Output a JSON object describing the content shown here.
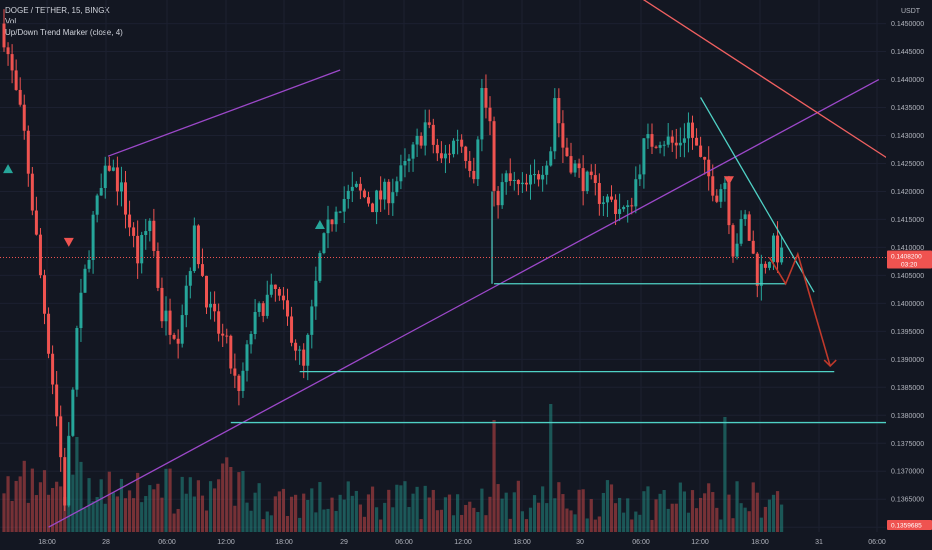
{
  "legend": {
    "symbol": "DOGE / TETHER, 15, BINGX",
    "volume_label": "Vol",
    "indicator": "Up/Down Trend Marker (close, 4)"
  },
  "currency": "USDT",
  "colors": {
    "background": "#131722",
    "up": "#26a69a",
    "down": "#ef5350",
    "channel": "#9c48c9",
    "trend": "#4fd1c5",
    "resistance": "#f06060",
    "projection": "#c0392b"
  },
  "chart_data": {
    "type": "candlestick",
    "x_tick_labels": [
      "18:00",
      "28",
      "06:00",
      "12:00",
      "18:00",
      "29",
      "06:00",
      "12:00",
      "18:00",
      "30",
      "06:00",
      "12:00",
      "18:00",
      "31",
      "06:00"
    ],
    "y_tick_labels": [
      "0.1360000",
      "0.1365000",
      "0.1370000",
      "0.1375000",
      "0.1380000",
      "0.1385000",
      "0.1390000",
      "0.1395000",
      "0.1400000",
      "0.1405000",
      "0.1410000",
      "0.1415000",
      "0.1420000",
      "0.1425000",
      "0.1430000",
      "0.1435000",
      "0.1440000",
      "0.1445000",
      "0.1450000",
      "0.1455000"
    ],
    "ylim": [
      0.13595,
      0.1456
    ],
    "last_price": {
      "value": 0.14082,
      "label": "0.1408200",
      "countdown": "03:20"
    },
    "volume_tag": "0.1359685",
    "key_price_levels": [
      0.138,
      0.13878,
      0.14035
    ],
    "anchors": [
      {
        "t": 0,
        "p": 0.1448
      },
      {
        "t": 5,
        "p": 0.143
      },
      {
        "t": 9,
        "p": 0.1405
      },
      {
        "t": 13,
        "p": 0.138
      },
      {
        "t": 15,
        "p": 0.1365
      },
      {
        "t": 18,
        "p": 0.1395
      },
      {
        "t": 22,
        "p": 0.1415
      },
      {
        "t": 26,
        "p": 0.1425
      },
      {
        "t": 29,
        "p": 0.142
      },
      {
        "t": 33,
        "p": 0.1408
      },
      {
        "t": 36,
        "p": 0.1415
      },
      {
        "t": 39,
        "p": 0.1398
      },
      {
        "t": 43,
        "p": 0.1395
      },
      {
        "t": 47,
        "p": 0.1412
      },
      {
        "t": 51,
        "p": 0.1398
      },
      {
        "t": 55,
        "p": 0.1392
      },
      {
        "t": 58,
        "p": 0.1383
      },
      {
        "t": 61,
        "p": 0.1395
      },
      {
        "t": 64,
        "p": 0.14
      },
      {
        "t": 67,
        "p": 0.1402
      },
      {
        "t": 71,
        "p": 0.1395
      },
      {
        "t": 74,
        "p": 0.1388
      },
      {
        "t": 78,
        "p": 0.1408
      },
      {
        "t": 82,
        "p": 0.1418
      },
      {
        "t": 87,
        "p": 0.142
      },
      {
        "t": 91,
        "p": 0.1418
      },
      {
        "t": 95,
        "p": 0.142
      },
      {
        "t": 100,
        "p": 0.1425
      },
      {
        "t": 104,
        "p": 0.1432
      },
      {
        "t": 108,
        "p": 0.1425
      },
      {
        "t": 112,
        "p": 0.143
      },
      {
        "t": 116,
        "p": 0.1424
      },
      {
        "t": 118,
        "p": 0.1438
      },
      {
        "t": 120,
        "p": 0.1432
      },
      {
        "t": 121,
        "p": 0.1418
      },
      {
        "t": 124,
        "p": 0.1422
      },
      {
        "t": 128,
        "p": 0.142
      },
      {
        "t": 131,
        "p": 0.1422
      },
      {
        "t": 135,
        "p": 0.1428
      },
      {
        "t": 136,
        "p": 0.1437
      },
      {
        "t": 138,
        "p": 0.1428
      },
      {
        "t": 142,
        "p": 0.1423
      },
      {
        "t": 146,
        "p": 0.142
      },
      {
        "t": 150,
        "p": 0.1418
      },
      {
        "t": 154,
        "p": 0.1416
      },
      {
        "t": 158,
        "p": 0.1428
      },
      {
        "t": 162,
        "p": 0.143
      },
      {
        "t": 166,
        "p": 0.1428
      },
      {
        "t": 169,
        "p": 0.1432
      },
      {
        "t": 172,
        "p": 0.1425
      },
      {
        "t": 176,
        "p": 0.142
      },
      {
        "t": 178,
        "p": 0.1422
      },
      {
        "t": 180,
        "p": 0.141
      },
      {
        "t": 183,
        "p": 0.1415
      },
      {
        "t": 186,
        "p": 0.1405
      },
      {
        "t": 190,
        "p": 0.141
      },
      {
        "t": 192,
        "p": 0.1408
      }
    ],
    "drawings": {
      "channel_upper": [
        [
          0,
          0.14263
        ],
        [
          83,
          0.14417
        ]
      ],
      "channel_lower": [
        [
          0,
          0.136
        ],
        [
          190,
          0.144
        ]
      ],
      "resistance_line": [
        [
          150,
          0.1458
        ],
        [
          215,
          0.1427
        ]
      ],
      "descending_trend": [
        [
          172,
          0.14368
        ],
        [
          200,
          0.1402
        ]
      ],
      "support_level_1": [
        [
          57,
          0.13787
        ],
        [
          220,
          0.13787
        ]
      ],
      "support_level_2": [
        [
          73,
          0.13878
        ],
        [
          205,
          0.13878
        ]
      ],
      "support_level_3": [
        [
          121,
          0.14035
        ],
        [
          193,
          0.14035
        ]
      ],
      "projection_path": [
        [
          189,
          0.14082
        ],
        [
          193,
          0.14035
        ],
        [
          196,
          0.14088
        ],
        [
          204,
          0.13888
        ]
      ]
    },
    "markers": [
      {
        "t": 1,
        "p": 0.1424,
        "dir": "up"
      },
      {
        "t": 16,
        "p": 0.1411,
        "dir": "down"
      },
      {
        "t": 78,
        "p": 0.1414,
        "dir": "up"
      },
      {
        "t": 179,
        "p": 0.1422,
        "dir": "down"
      }
    ]
  }
}
